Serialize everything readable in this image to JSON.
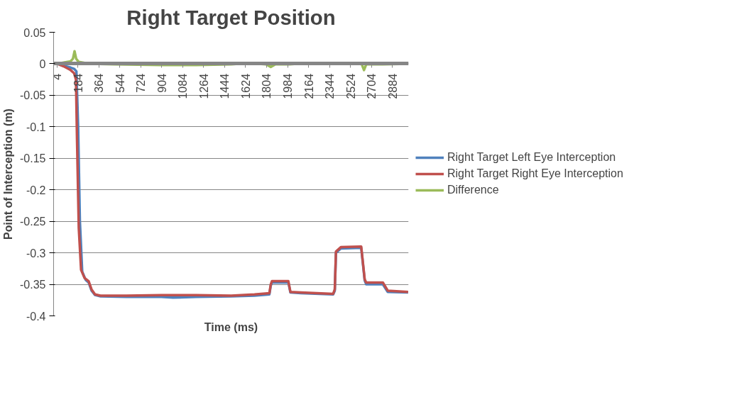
{
  "chart_data": {
    "type": "line",
    "title": "Right Target Position",
    "xlabel": "Time (ms)",
    "ylabel": "Point of Interception (m)",
    "xlim": [
      -26,
      3024
    ],
    "ylim": [
      -0.4,
      0.05
    ],
    "xticks": [
      4,
      184,
      364,
      544,
      724,
      904,
      1084,
      1264,
      1444,
      1624,
      1804,
      1984,
      2164,
      2344,
      2524,
      2704,
      2884
    ],
    "yticks": [
      0.05,
      0,
      -0.05,
      -0.1,
      -0.15,
      -0.2,
      -0.25,
      -0.3,
      -0.35,
      -0.4
    ],
    "grid": "y",
    "legend": "right",
    "marker": "none",
    "line_style": "solid",
    "series": [
      {
        "name": "Right Target Left Eye Interception",
        "color": "#4f81bd",
        "x": [
          4,
          60,
          120,
          150,
          170,
          185,
          200,
          220,
          250,
          275,
          300,
          330,
          377,
          600,
          900,
          1000,
          1200,
          1500,
          1700,
          1828,
          1840,
          1850,
          1991,
          2009,
          2100,
          2376,
          2390,
          2400,
          2442,
          2617,
          2647,
          2660,
          2803,
          2845,
          3020
        ],
        "values": [
          0,
          -0.003,
          -0.006,
          -0.008,
          -0.012,
          -0.1,
          -0.25,
          -0.33,
          -0.343,
          -0.347,
          -0.36,
          -0.367,
          -0.369,
          -0.37,
          -0.37,
          -0.371,
          -0.37,
          -0.369,
          -0.368,
          -0.366,
          -0.352,
          -0.347,
          -0.347,
          -0.363,
          -0.364,
          -0.366,
          -0.36,
          -0.3,
          -0.293,
          -0.292,
          -0.344,
          -0.35,
          -0.35,
          -0.362,
          -0.363
        ]
      },
      {
        "name": "Right Target Right Eye Interception",
        "color": "#c0504d",
        "x": [
          4,
          60,
          120,
          150,
          166,
          175,
          190,
          210,
          240,
          275,
          300,
          330,
          377,
          600,
          900,
          1000,
          1200,
          1500,
          1700,
          1828,
          1840,
          1850,
          1991,
          2009,
          2100,
          2376,
          2390,
          2400,
          2442,
          2617,
          2647,
          2660,
          2803,
          2845,
          3020
        ],
        "values": [
          0,
          -0.004,
          -0.01,
          -0.015,
          -0.025,
          -0.12,
          -0.26,
          -0.327,
          -0.34,
          -0.345,
          -0.358,
          -0.366,
          -0.368,
          -0.368,
          -0.367,
          -0.367,
          -0.367,
          -0.368,
          -0.366,
          -0.364,
          -0.35,
          -0.345,
          -0.345,
          -0.362,
          -0.363,
          -0.365,
          -0.358,
          -0.298,
          -0.291,
          -0.29,
          -0.342,
          -0.347,
          -0.347,
          -0.36,
          -0.362
        ]
      },
      {
        "name": "Difference",
        "color": "#9bbb59",
        "x": [
          4,
          60,
          120,
          140,
          154,
          168,
          190,
          250,
          300,
          500,
          900,
          1200,
          1500,
          1650,
          1800,
          1840,
          1880,
          2000,
          2150,
          2300,
          2550,
          2620,
          2641,
          2660,
          2800,
          3020
        ],
        "values": [
          0,
          0.002,
          0.004,
          0.008,
          0.02,
          0.008,
          0.003,
          0.001,
          0,
          -0.001,
          -0.002,
          -0.002,
          -0.001,
          0.001,
          -0.001,
          -0.005,
          -0.001,
          -0.001,
          0.001,
          0,
          0,
          0,
          -0.01,
          -0.001,
          -0.001,
          0
        ]
      }
    ]
  }
}
